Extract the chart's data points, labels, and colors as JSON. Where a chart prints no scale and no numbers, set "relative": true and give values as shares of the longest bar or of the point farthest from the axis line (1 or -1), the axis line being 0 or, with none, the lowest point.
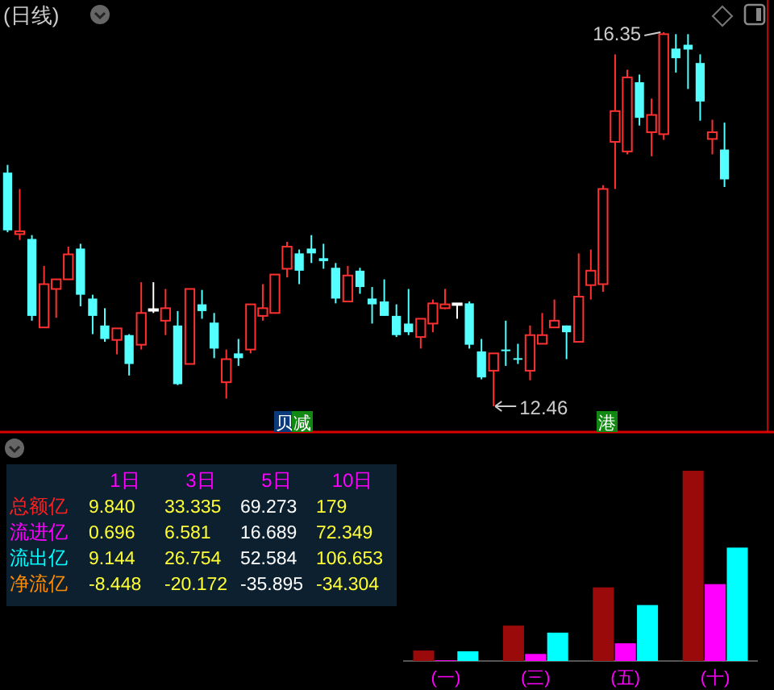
{
  "chart_data": [
    {
      "type": "candlestick",
      "title": "(日线)",
      "categories": [
        null,
        null,
        null,
        null,
        null,
        null,
        null,
        null,
        null,
        null,
        null,
        null,
        null,
        null,
        null,
        null,
        null,
        null,
        null,
        null,
        null,
        null,
        null,
        null,
        null,
        null,
        null,
        null,
        null,
        null,
        null,
        null,
        null,
        null,
        null,
        null,
        null,
        null,
        null,
        null,
        null,
        null,
        null,
        null,
        null,
        null,
        null,
        null,
        null,
        null,
        null,
        null,
        null,
        null,
        null,
        null,
        null,
        null,
        null,
        null
      ],
      "ohlc": [
        [
          14.89,
          14.97,
          14.27,
          14.29
        ],
        [
          14.25,
          14.72,
          14.19,
          14.28
        ],
        [
          14.2,
          14.24,
          13.35,
          13.4
        ],
        [
          13.28,
          13.92,
          13.28,
          13.73
        ],
        [
          13.68,
          13.78,
          13.38,
          13.78
        ],
        [
          13.78,
          14.12,
          13.78,
          14.04
        ],
        [
          14.1,
          14.15,
          13.5,
          13.62
        ],
        [
          13.58,
          13.62,
          13.21,
          13.4
        ],
        [
          13.3,
          13.48,
          13.13,
          13.16
        ],
        [
          13.15,
          13.27,
          13.0,
          13.27
        ],
        [
          13.2,
          13.21,
          12.78,
          12.9
        ],
        [
          13.1,
          13.75,
          13.05,
          13.43
        ],
        [
          13.47,
          13.75,
          13.43,
          13.47
        ],
        [
          13.35,
          13.68,
          13.2,
          13.48
        ],
        [
          13.3,
          13.45,
          12.68,
          12.69
        ],
        [
          12.9,
          13.68,
          12.9,
          13.68
        ],
        [
          13.52,
          13.67,
          13.37,
          13.45
        ],
        [
          13.33,
          13.43,
          12.96,
          13.06
        ],
        [
          12.71,
          13.05,
          12.54,
          12.95
        ],
        [
          13.01,
          13.16,
          12.88,
          12.96
        ],
        [
          13.05,
          13.52,
          13.01,
          13.52
        ],
        [
          13.4,
          13.73,
          13.35,
          13.48
        ],
        [
          13.43,
          13.83,
          13.43,
          13.83
        ],
        [
          13.89,
          14.17,
          13.8,
          14.12
        ],
        [
          14.05,
          14.09,
          13.73,
          13.87
        ],
        [
          14.1,
          14.24,
          13.95,
          14.05
        ],
        [
          14.0,
          14.15,
          13.89,
          13.97
        ],
        [
          13.9,
          13.95,
          13.53,
          13.58
        ],
        [
          13.55,
          13.92,
          13.55,
          13.82
        ],
        [
          13.87,
          13.9,
          13.63,
          13.7
        ],
        [
          13.58,
          13.7,
          13.32,
          13.52
        ],
        [
          13.55,
          13.78,
          13.4,
          13.4
        ],
        [
          13.4,
          13.52,
          13.18,
          13.2
        ],
        [
          13.32,
          13.68,
          13.2,
          13.23
        ],
        [
          13.18,
          13.37,
          13.06,
          13.37
        ],
        [
          13.32,
          13.57,
          13.23,
          13.53
        ],
        [
          13.48,
          13.68,
          13.47,
          13.52
        ],
        [
          13.53,
          13.53,
          13.37,
          13.53
        ],
        [
          13.53,
          13.55,
          13.06,
          13.1
        ],
        [
          13.03,
          13.16,
          12.74,
          12.76
        ],
        [
          12.83,
          13.01,
          12.46,
          13.01
        ],
        [
          13.05,
          13.35,
          12.88,
          13.04
        ],
        [
          12.96,
          13.11,
          12.9,
          12.95
        ],
        [
          12.83,
          13.3,
          12.73,
          13.2
        ],
        [
          13.11,
          13.43,
          13.11,
          13.2
        ],
        [
          13.28,
          13.57,
          13.28,
          13.35
        ],
        [
          13.3,
          13.3,
          12.95,
          13.23
        ],
        [
          13.13,
          14.05,
          13.13,
          13.6
        ],
        [
          13.72,
          14.09,
          13.57,
          13.87
        ],
        [
          13.73,
          14.76,
          13.65,
          14.72
        ],
        [
          15.21,
          16.12,
          14.72,
          15.53
        ],
        [
          15.11,
          15.96,
          15.08,
          15.88
        ],
        [
          15.83,
          15.91,
          15.38,
          15.46
        ],
        [
          15.31,
          15.66,
          15.06,
          15.49
        ],
        [
          15.29,
          16.35,
          15.23,
          16.33
        ],
        [
          16.18,
          16.33,
          15.93,
          16.08
        ],
        [
          16.22,
          16.33,
          15.76,
          16.17
        ],
        [
          16.03,
          16.12,
          15.43,
          15.63
        ],
        [
          15.24,
          15.44,
          15.08,
          15.31
        ],
        [
          15.13,
          15.41,
          14.74,
          14.82
        ]
      ],
      "annotations": [
        "16.35",
        "12.46",
        "贝",
        "减",
        "港"
      ]
    },
    {
      "type": "bar",
      "relative": true,
      "categories": [
        "(一)",
        "(三)",
        "(五)",
        "(十)"
      ],
      "series": [
        {
          "color": "#9b0a0a",
          "values": [
            0.055,
            0.186,
            0.387,
            1
          ]
        },
        {
          "color": "#ff00ff",
          "values": [
            0.004,
            0.037,
            0.093,
            0.404
          ]
        },
        {
          "color": "#00ffff",
          "values": [
            0.051,
            0.149,
            0.294,
            0.596
          ]
        }
      ]
    },
    {
      "type": "other",
      "annotations": [
        "1日",
        "3日",
        "5日",
        "10日",
        "总额亿",
        "9.840",
        "33.335",
        "69.273",
        "179",
        "流进亿",
        "0.696",
        "6.581",
        "16.689",
        "72.349",
        "流出亿",
        "9.144",
        "26.754",
        "52.584",
        "106.653",
        "净流亿",
        "-8.448",
        "-20.172",
        "-35.895",
        "-34.304"
      ]
    }
  ]
}
